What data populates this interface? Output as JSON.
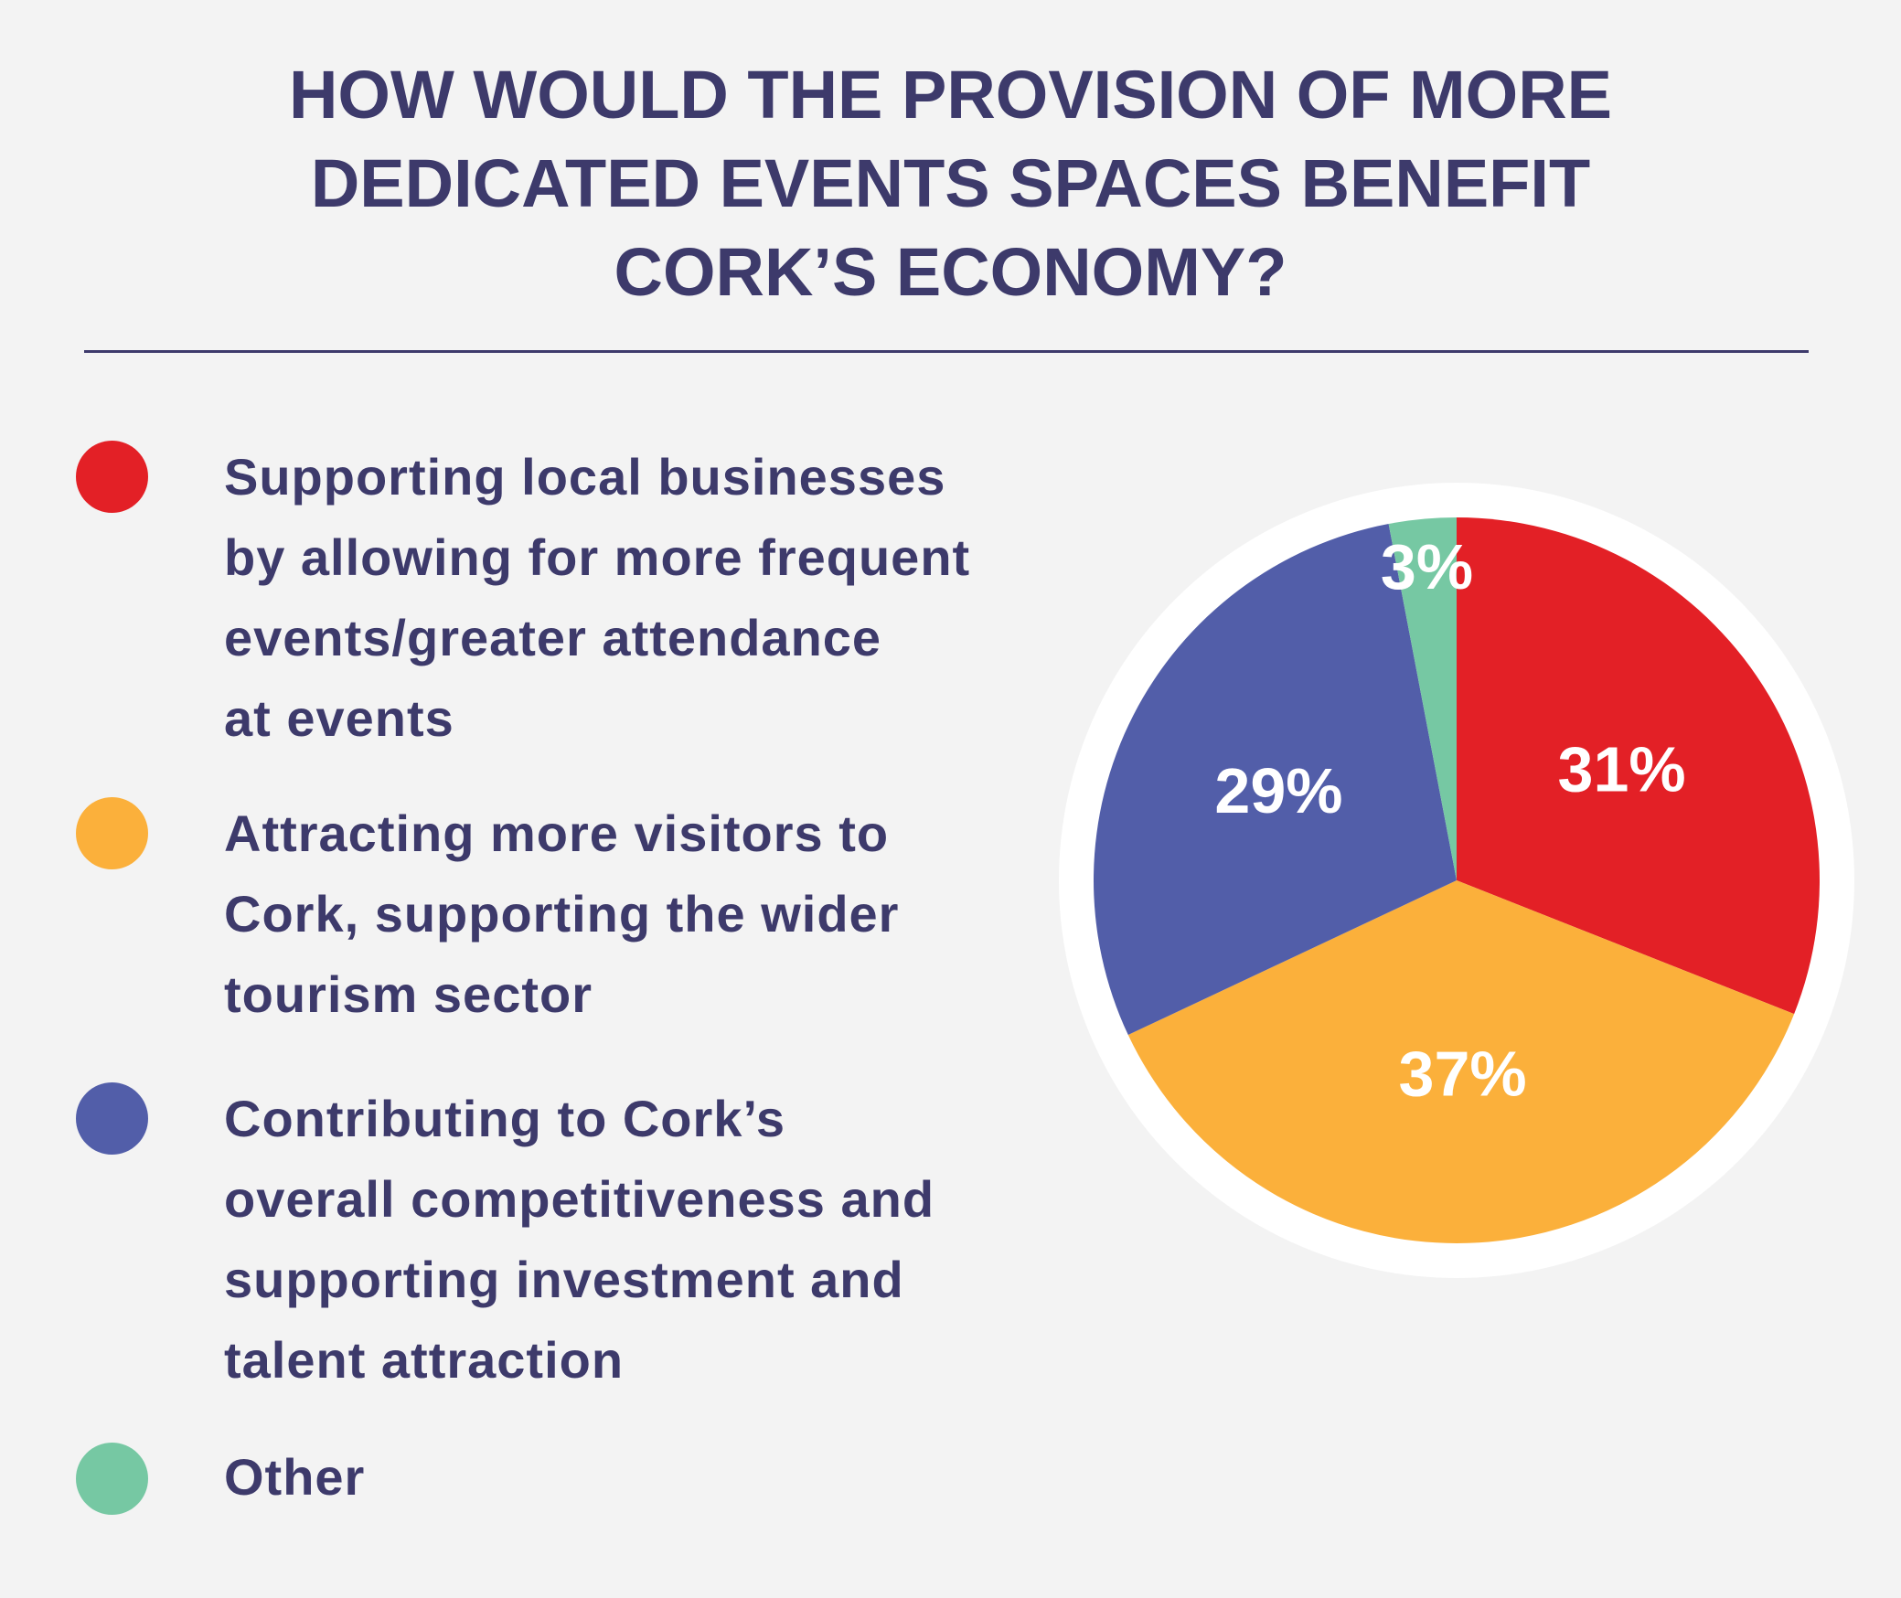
{
  "title_lines": [
    "HOW WOULD THE PROVISION OF MORE",
    "DEDICATED EVENTS SPACES BENEFIT",
    "CORK’S ECONOMY?"
  ],
  "colors": {
    "text": "#3d3a6b",
    "background": "#f3f3f3",
    "red": "#e32026",
    "orange": "#fbb03b",
    "blue": "#525ea9",
    "green": "#76c8a3"
  },
  "legend": [
    {
      "lines": [
        "Supporting local businesses",
        "by allowing for more frequent",
        "events/greater attendance",
        "at events"
      ],
      "color": "#e32026"
    },
    {
      "lines": [
        "Attracting more visitors to",
        "Cork, supporting the wider",
        "tourism sector"
      ],
      "color": "#fbb03b"
    },
    {
      "lines": [
        "Contributing to Cork’s",
        "overall competitiveness and",
        "supporting investment and",
        "talent attraction"
      ],
      "color": "#525ea9"
    },
    {
      "lines": [
        "Other"
      ],
      "color": "#76c8a3"
    }
  ],
  "chart_data": {
    "type": "pie",
    "title": "HOW WOULD THE PROVISION OF MORE DEDICATED EVENTS SPACES BENEFIT CORK’S ECONOMY?",
    "slices": [
      {
        "label": "Supporting local businesses by allowing for more frequent events/greater attendance at events",
        "value": 31,
        "display": "31%",
        "color": "#e32026"
      },
      {
        "label": "Attracting more visitors to Cork, supporting the wider tourism sector",
        "value": 37,
        "display": "37%",
        "color": "#fbb03b"
      },
      {
        "label": "Contributing to Cork’s overall competitiveness and supporting investment and talent attraction",
        "value": 29,
        "display": "29%",
        "color": "#525ea9"
      },
      {
        "label": "Other",
        "value": 3,
        "display": "3%",
        "color": "#76c8a3"
      }
    ],
    "start": "12 o'clock",
    "direction": "clockwise",
    "legend_position": "left"
  }
}
